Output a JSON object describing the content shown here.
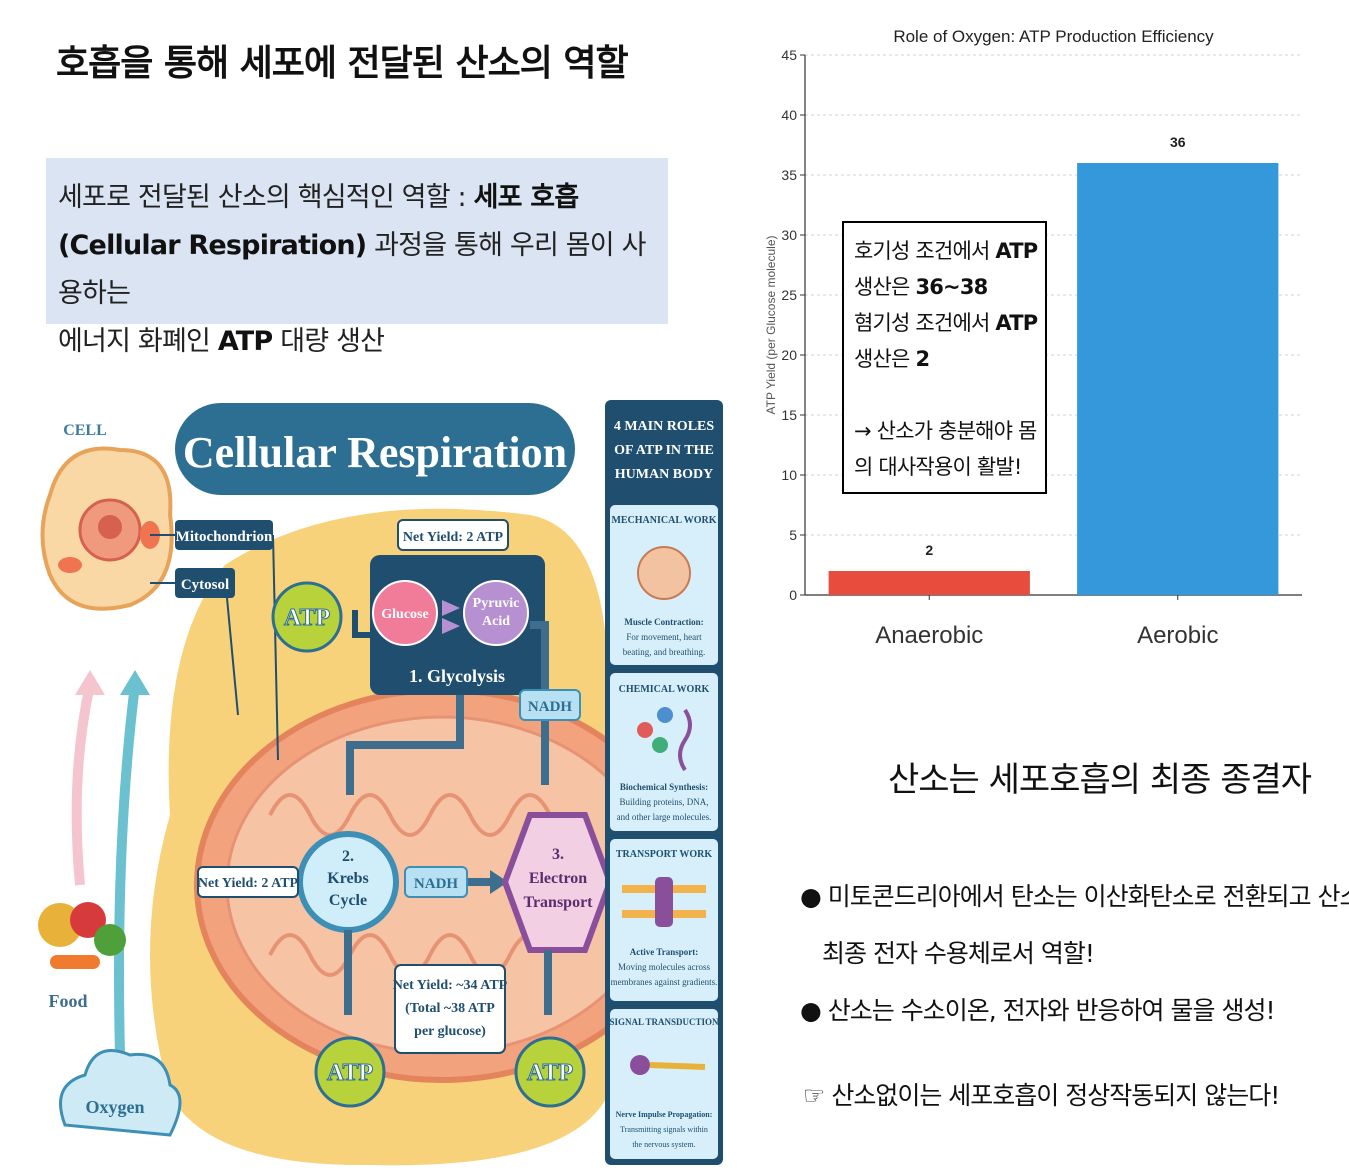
{
  "slide": {
    "title": "호흡을 통해 세포에 전달된 산소의 역할",
    "intro": {
      "p1": "세포로 전달된 산소의 핵심적인 역할 : ",
      "b1": "세포 호흡",
      "b2": "(Cellular Respiration)",
      "p2": " 과정을 통해 우리 몸이 사용하는",
      "p3": "에너지 화폐인 ",
      "b3": "ATP",
      "p4": " 대량 생산"
    }
  },
  "infographic": {
    "cell_label": "CELL",
    "title": "Cellular Respiration",
    "mito_label": "Mitochondrion",
    "cytosol_label": "Cytosol",
    "net_yield_top": "Net Yield: 2 ATP",
    "glucose": "Glucose",
    "pyruvic1": "Pyruvic",
    "pyruvic2": "Acid",
    "glycolysis": "1. Glycolysis",
    "atp": "ATP",
    "nadh": "NADH",
    "krebs1": "2.",
    "krebs2": "Krebs",
    "krebs3": "Cycle",
    "net_yield_left": "Net Yield: 2 ATP",
    "etc1": "3.",
    "etc2": "Electron",
    "etc3": "Transport",
    "net34_1": "Net Yield: ~34 ATP",
    "net34_2": "(Total ~38 ATP",
    "net34_3": "per glucose)",
    "food": "Food",
    "oxygen": "Oxygen",
    "panel": {
      "header1": "4 MAIN ROLES",
      "header2": "OF ATP IN THE",
      "header3": "HUMAN BODY",
      "s1_title": "MECHANICAL WORK",
      "s1_d1": "Muscle Contraction:",
      "s1_d2": "For movement, heart",
      "s1_d3": "beating, and breathing.",
      "s2_title": "CHEMICAL WORK",
      "s2_d1": "Biochemical Synthesis:",
      "s2_d2": "Building proteins, DNA,",
      "s2_d3": "and other large molecules.",
      "s3_title": "TRANSPORT WORK",
      "s3_d1": "Active Transport:",
      "s3_d2": "Moving molecules across",
      "s3_d3": "membranes against gradients.",
      "s4_title": "SIGNAL TRANSDUCTION",
      "s4_d1": "Nerve Impulse Propagation:",
      "s4_d2": "Transmitting signals within",
      "s4_d3": "the nervous system."
    }
  },
  "chart_data": {
    "type": "bar",
    "title": "Role of Oxygen: ATP Production Efficiency",
    "categories": [
      "Anaerobic",
      "Aerobic"
    ],
    "values": [
      2,
      36
    ],
    "colors": [
      "#e74c3c",
      "#3498db"
    ],
    "ylabel": "ATP Yield (per Glucose molecule)",
    "xlabel": "",
    "ylim": [
      0,
      45
    ],
    "yticks": [
      0,
      5,
      10,
      15,
      20,
      25,
      30,
      35,
      40,
      45
    ],
    "grid": true,
    "annotation": {
      "l1a": "호기성 조건에서 ",
      "l1b": "ATP",
      "l2a": "생산은 ",
      "l2b": "36~38",
      "l3a": "혐기성 조건에서 ",
      "l3b": "ATP",
      "l4a": "생산은 ",
      "l4b": "2",
      "l5": "→ 산소가 충분해야 몸",
      "l6": "의 대사작용이 활발!"
    }
  },
  "side": {
    "title": "산소는 세포호흡의 최종 종결자",
    "bullet1a": "● 미토콘드리아에서 탄소는 이산화탄소로 전환되고 산소는",
    "bullet1b": "최종 전자 수용체로서 역할!",
    "bullet2": "● 산소는 수소이온, 전자와 반응하여 물을 생성!",
    "note": "☞ 산소없이는 세포호흡이 정상작동되지 않는다!"
  }
}
